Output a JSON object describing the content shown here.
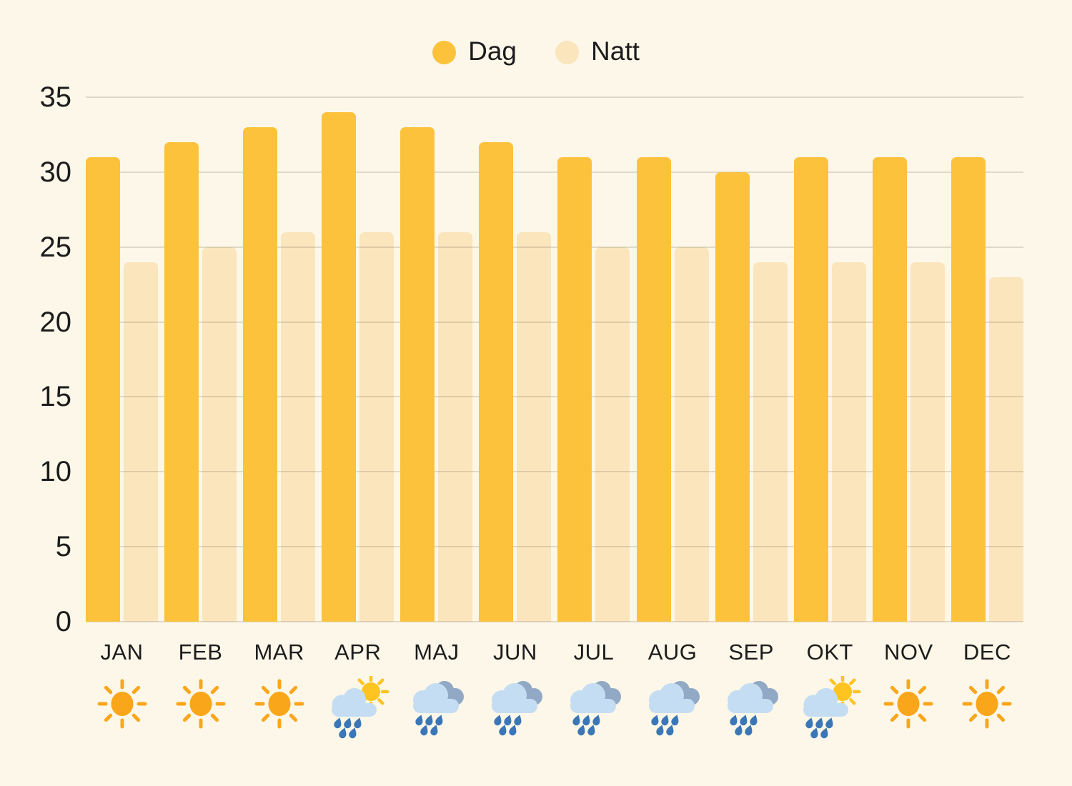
{
  "page": {
    "background": "#FCF7E8",
    "text_color": "#1C1C1C",
    "gridline_color": "rgba(95,85,60,0.18)"
  },
  "chart_data": {
    "type": "bar",
    "title": "",
    "xlabel": "",
    "ylabel": "",
    "categories": [
      "JAN",
      "FEB",
      "MAR",
      "APR",
      "MAJ",
      "JUN",
      "JUL",
      "AUG",
      "SEP",
      "OKT",
      "NOV",
      "DEC"
    ],
    "series": [
      {
        "name": "Dag",
        "color": "#FCC23C",
        "values": [
          31,
          32,
          33,
          34,
          33,
          32,
          31,
          31,
          30,
          31,
          31,
          31
        ]
      },
      {
        "name": "Natt",
        "color": "#FAE5BD",
        "values": [
          24,
          25,
          26,
          26,
          26,
          26,
          25,
          25,
          24,
          24,
          24,
          23
        ]
      }
    ],
    "ylim": [
      0,
      35
    ],
    "yticks": [
      0,
      5,
      10,
      15,
      20,
      25,
      30,
      35
    ],
    "grid": true,
    "legend_position": "top-center",
    "weather_icons": [
      "sun",
      "sun",
      "sun",
      "rain-sun",
      "rain",
      "rain",
      "rain",
      "rain",
      "rain",
      "rain-sun",
      "sun",
      "sun"
    ]
  },
  "icon_colors": {
    "sun": "#F9A61B",
    "sun_bright": "#FFC41F",
    "cloud_light": "#C5DDF3",
    "cloud_dark": "#92A9C5",
    "raindrop": "#3B76B6"
  }
}
